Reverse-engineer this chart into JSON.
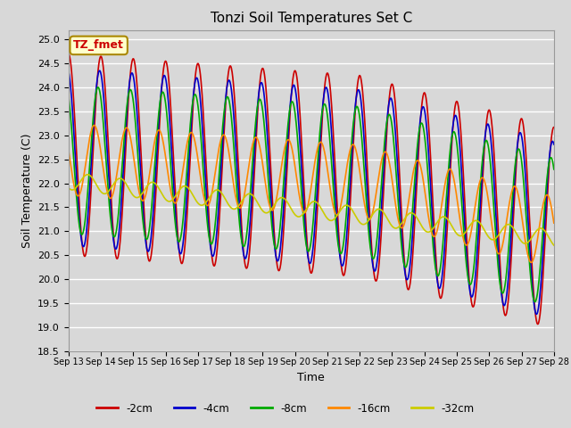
{
  "title": "Tonzi Soil Temperatures Set C",
  "xlabel": "Time",
  "ylabel": "Soil Temperature (C)",
  "ylim": [
    18.5,
    25.2
  ],
  "bg_color": "#dcdcdc",
  "grid_color": "#f0f0f0",
  "series": [
    {
      "label": "-2cm",
      "color": "#cc0000",
      "lw": 1.2
    },
    {
      "label": "-4cm",
      "color": "#0000cc",
      "lw": 1.2
    },
    {
      "label": "-8cm",
      "color": "#00aa00",
      "lw": 1.2
    },
    {
      "label": "-16cm",
      "color": "#ff8800",
      "lw": 1.2
    },
    {
      "label": "-32cm",
      "color": "#cccc00",
      "lw": 1.2
    }
  ],
  "legend_label": "TZ_fmet",
  "legend_bg": "#ffffcc",
  "legend_border": "#aa8800",
  "xticklabels": [
    "Sep 13",
    "Sep 14",
    "Sep 15",
    "Sep 16",
    "Sep 17",
    "Sep 18",
    "Sep 19",
    "Sep 20",
    "Sep 21",
    "Sep 22",
    "Sep 23",
    "Sep 24",
    "Sep 25",
    "Sep 26",
    "Sep 27",
    "Sep 28"
  ],
  "start_day": 13,
  "end_day": 28,
  "points_per_day": 96
}
